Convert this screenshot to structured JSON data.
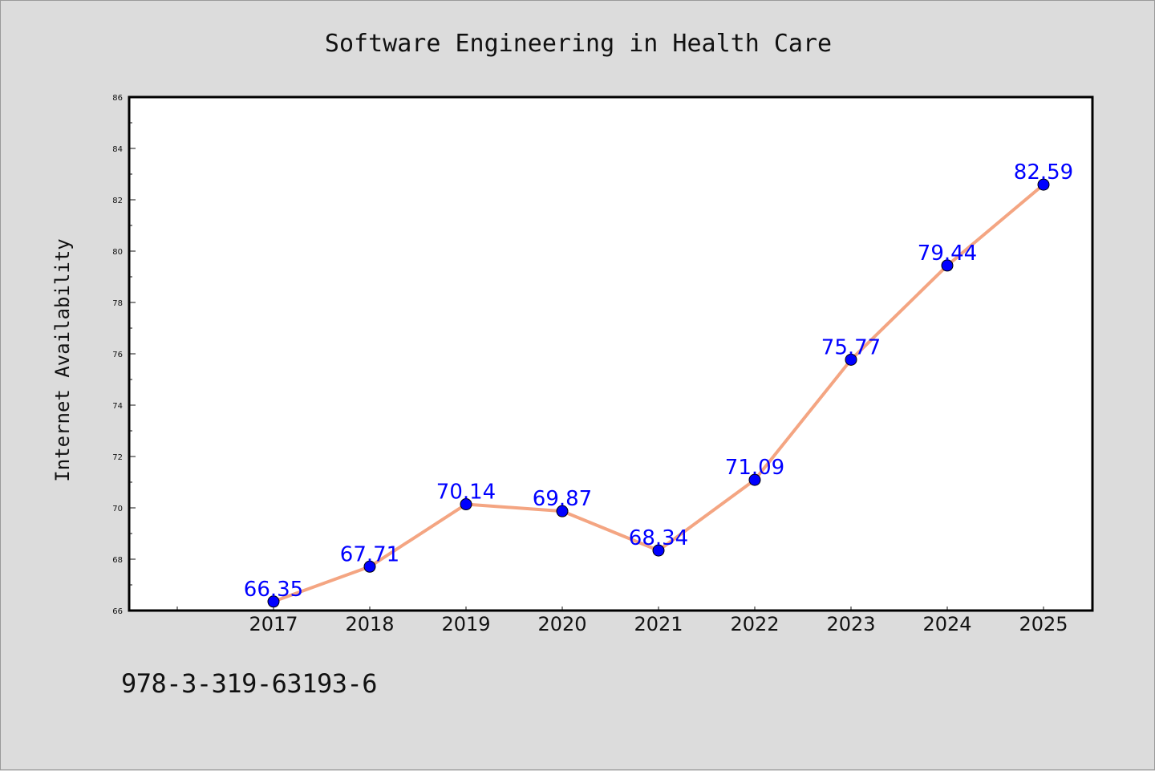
{
  "chart_data": {
    "type": "line",
    "title": "Software Engineering in Health Care",
    "xlabel": "",
    "ylabel": "Internet Availability",
    "categories": [
      "2017",
      "2018",
      "2019",
      "2020",
      "2021",
      "2022",
      "2023",
      "2024",
      "2025"
    ],
    "series": [
      {
        "values": [
          66.35,
          67.71,
          70.14,
          69.87,
          68.34,
          71.09,
          75.77,
          79.44,
          82.59
        ],
        "labels": [
          "66.35",
          "67.71",
          "70.14",
          "69.87",
          "68.34",
          "71.09",
          "75.77",
          "79.44",
          "82.59"
        ],
        "line_color": "#f4a582",
        "marker_color": "#0000ff"
      }
    ],
    "ylim": [
      66,
      86
    ],
    "yticks": [
      "66",
      "68",
      "70",
      "72",
      "74",
      "76",
      "78",
      "80",
      "82",
      "84",
      "86"
    ],
    "grid": false,
    "legend": "none"
  },
  "footer": {
    "code": "978-3-319-63193-6"
  }
}
